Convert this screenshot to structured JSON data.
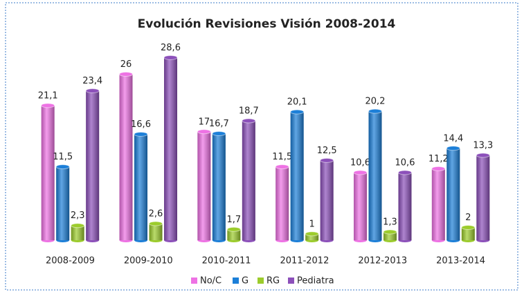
{
  "chart_data": {
    "type": "bar",
    "title": "Evolución Revisiones Visión 2008-2014",
    "categories": [
      "2008-2009",
      "2009-2010",
      "2010-2011",
      "2011-2012",
      "2012-2013",
      "2013-2014"
    ],
    "series": [
      {
        "name": "No/C",
        "color": "#ee72e4",
        "values": [
          21.1,
          26,
          17,
          11.5,
          10.6,
          11.2
        ],
        "value_labels": [
          "21,1",
          "26",
          "17",
          "11,5",
          "10,6",
          "11,2"
        ]
      },
      {
        "name": "G",
        "color": "#1c7fd8",
        "values": [
          11.5,
          16.6,
          16.7,
          20.1,
          20.2,
          14.4
        ],
        "value_labels": [
          "11,5",
          "16,6",
          "16,7",
          "20,1",
          "20,2",
          "14,4"
        ]
      },
      {
        "name": "RG",
        "color": "#9ccc2c",
        "values": [
          2.3,
          2.6,
          1.7,
          1,
          1.3,
          2
        ],
        "value_labels": [
          "2,3",
          "2,6",
          "1,7",
          "1",
          "1,3",
          "2"
        ]
      },
      {
        "name": "Pediatra",
        "color": "#8c50ba",
        "values": [
          23.4,
          28.6,
          18.7,
          12.5,
          10.6,
          13.3
        ],
        "value_labels": [
          "23,4",
          "28,6",
          "18,7",
          "12,5",
          "10,6",
          "13,3"
        ]
      }
    ],
    "legend": "bottom"
  }
}
